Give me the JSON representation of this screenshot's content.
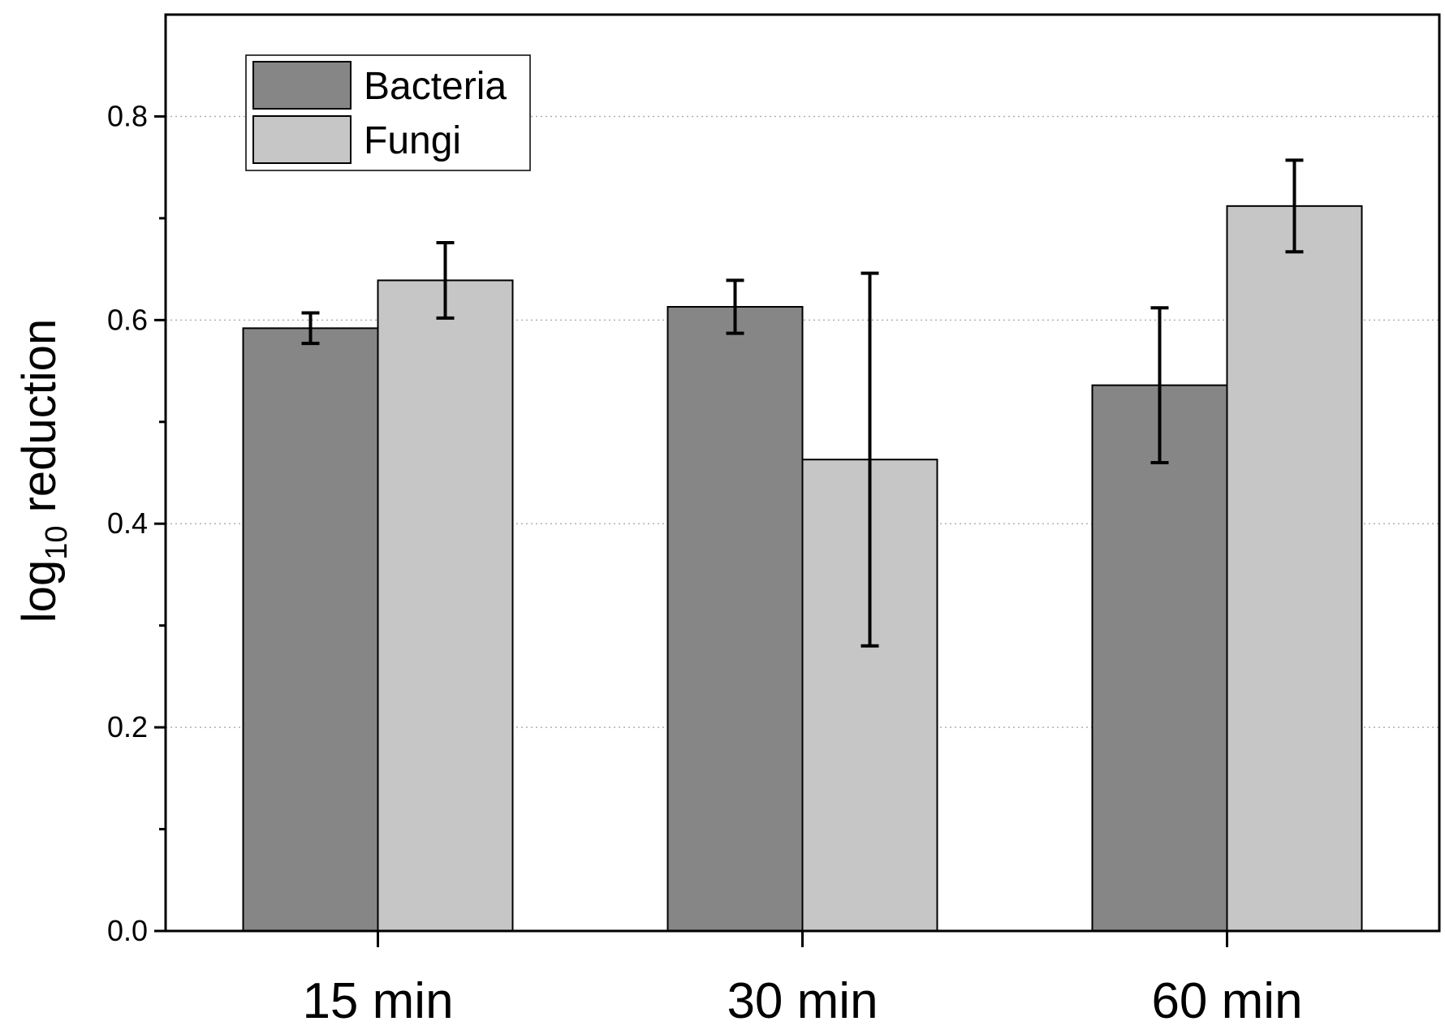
{
  "chart_data": {
    "type": "bar",
    "title": "",
    "xlabel": "",
    "ylabel": {
      "prefix": "log",
      "subscript": "10",
      "suffix": " reduction"
    },
    "categories": [
      "15 min",
      "30 min",
      "60 min"
    ],
    "series": [
      {
        "name": "Bacteria",
        "color": "#868686",
        "values": [
          0.592,
          0.613,
          0.536
        ],
        "errors": [
          0.015,
          0.026,
          0.076
        ]
      },
      {
        "name": "Fungi",
        "color": "#c6c6c6",
        "values": [
          0.639,
          0.463,
          0.712
        ],
        "errors": [
          0.037,
          0.183,
          0.045
        ]
      }
    ],
    "ylim": [
      0,
      0.9
    ],
    "yticks": [
      "0.0",
      "0.2",
      "0.4",
      "0.6",
      "0.8"
    ],
    "ytick_values": [
      0.0,
      0.2,
      0.4,
      0.6,
      0.8
    ],
    "grid": "horizontal dotted",
    "legend_position": "top-left"
  }
}
